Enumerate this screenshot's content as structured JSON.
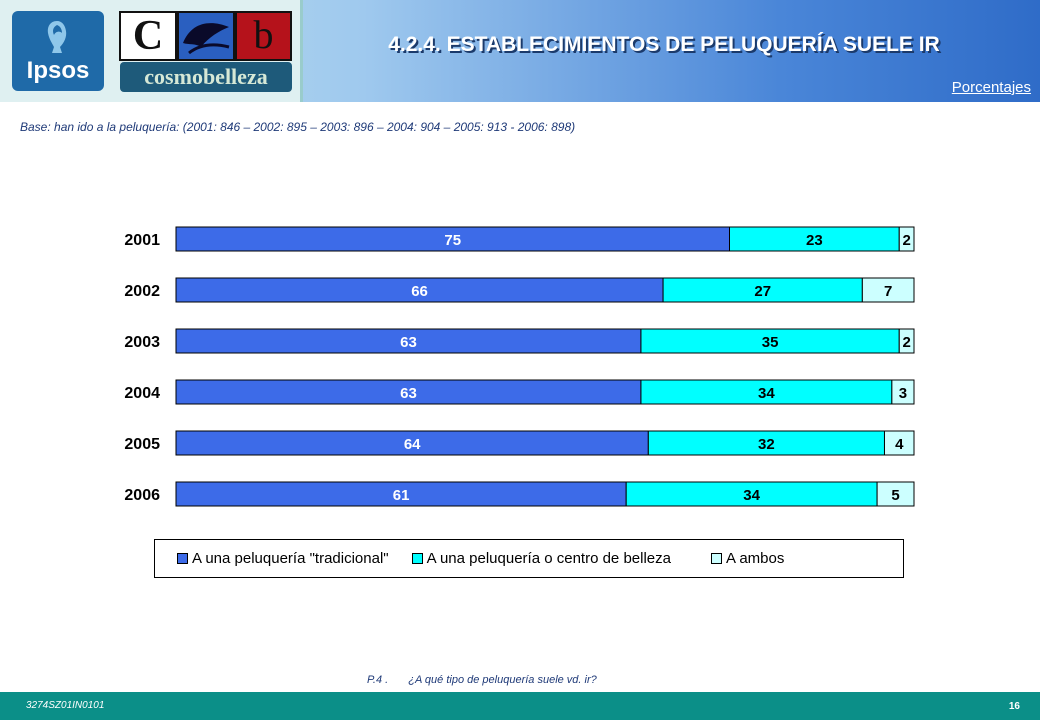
{
  "header": {
    "title": "4.2.4. ESTABLECIMIENTOS DE PELUQUERÍA SUELE IR",
    "subtitle": "Porcentajes",
    "logos": {
      "ipsos": "Ipsos",
      "cb_left": "C",
      "cb_right": "b",
      "cosmo": "cosmobelleza"
    }
  },
  "base_text": "Base: han ido a la peluquería: (2001: 846 – 2002: 895 – 2003: 896 – 2004: 904 – 2005: 913 - 2006: 898)",
  "chart_data": {
    "type": "bar",
    "orientation": "horizontal",
    "stacked": "100%",
    "categories": [
      "2001",
      "2002",
      "2003",
      "2004",
      "2005",
      "2006"
    ],
    "series": [
      {
        "name": "A una peluquería \"tradicional\"",
        "color": "#3d6be8",
        "values": [
          75,
          66,
          63,
          63,
          64,
          61
        ]
      },
      {
        "name": "A una peluquería o centro de belleza",
        "color": "#00ffff",
        "values": [
          23,
          27,
          35,
          34,
          32,
          34
        ]
      },
      {
        "name": "A ambos",
        "color": "#ccffff",
        "values": [
          2,
          7,
          2,
          3,
          4,
          5
        ]
      }
    ],
    "data_labels": true,
    "grid": false,
    "legend_position": "bottom"
  },
  "question": {
    "code": "P.4 .",
    "text": "¿A qué tipo de peluquería suele vd. ir?"
  },
  "footer": {
    "code": "3274SZ01IN0101",
    "page": "16"
  },
  "colors": {
    "footer_bg": "#0b8f88",
    "header_accent": "#2f6cc8",
    "text_blue": "#1f3a78"
  }
}
